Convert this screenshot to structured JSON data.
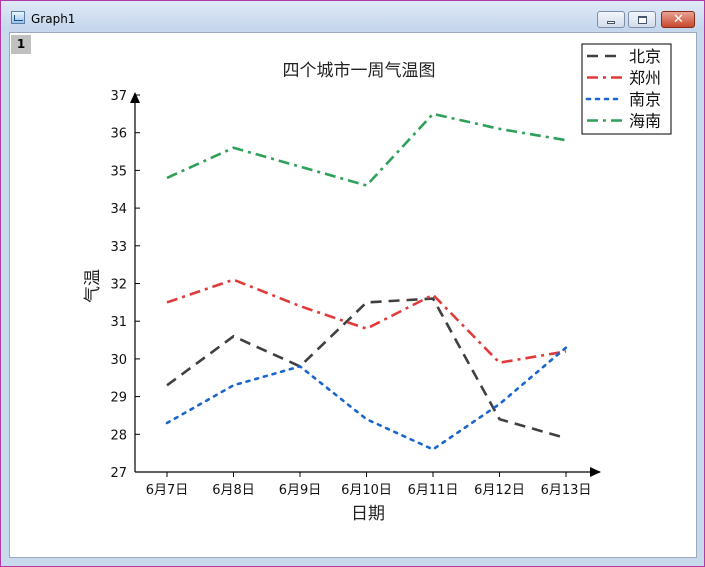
{
  "window": {
    "title": "Graph1",
    "layer_number": "1"
  },
  "chart_data": {
    "type": "line",
    "title": "四个城市一周气温图",
    "xlabel": "日期",
    "ylabel": "气温",
    "categories": [
      "6月7日",
      "6月8日",
      "6月9日",
      "6月10日",
      "6月11日",
      "6月12日",
      "6月13日"
    ],
    "ylim": [
      27,
      37
    ],
    "yticks": [
      "27",
      "28",
      "29",
      "30",
      "31",
      "32",
      "33",
      "34",
      "35",
      "36",
      "37"
    ],
    "grid": false,
    "legend_position": "top-right",
    "series": [
      {
        "name": "北京",
        "values": [
          29.3,
          30.6,
          29.8,
          31.5,
          31.6,
          28.4,
          27.9
        ],
        "color": "#404040",
        "style": "dash"
      },
      {
        "name": "郑州",
        "values": [
          31.5,
          32.1,
          31.4,
          30.8,
          31.7,
          29.9,
          30.2
        ],
        "color": "#e03a3a",
        "style": "dashdot"
      },
      {
        "name": "南京",
        "values": [
          28.3,
          29.3,
          29.8,
          28.4,
          27.6,
          28.8,
          30.3
        ],
        "color": "#1a66cc",
        "style": "dot"
      },
      {
        "name": "海南",
        "values": [
          34.8,
          35.6,
          35.1,
          34.6,
          36.5,
          36.1,
          35.8
        ],
        "color": "#2ea05a",
        "style": "dashdot"
      }
    ]
  }
}
